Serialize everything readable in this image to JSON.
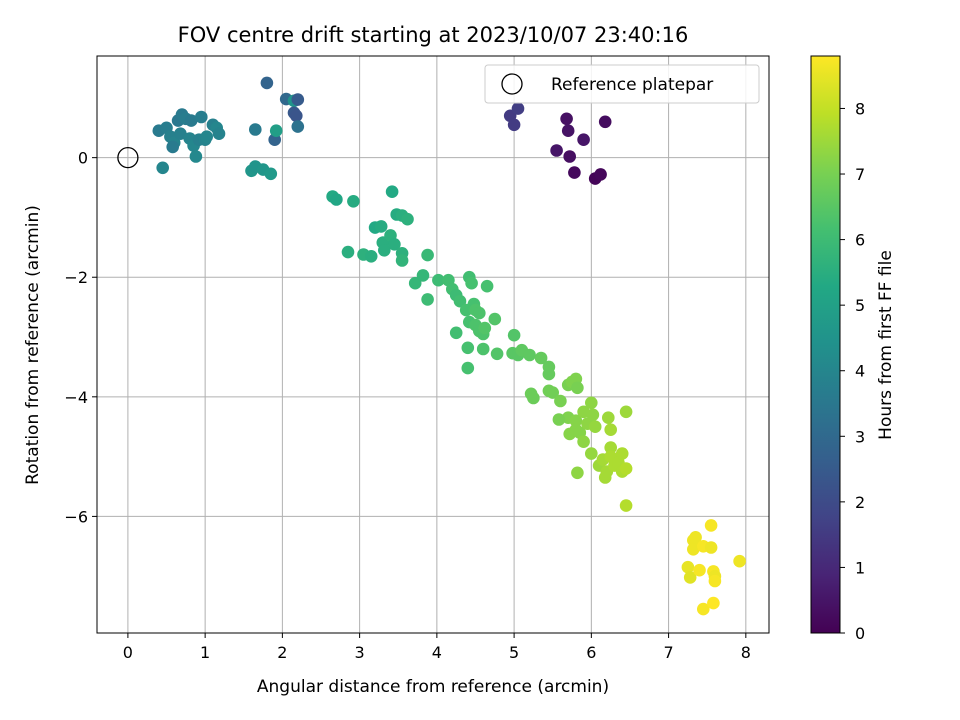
{
  "chart_data": {
    "type": "scatter",
    "title": "FOV centre drift starting at 2023/10/07 23:40:16",
    "xlabel": "Angular distance from reference (arcmin)",
    "ylabel": "Rotation from reference (arcmin)",
    "xlim": [
      -0.4,
      8.3
    ],
    "ylim": [
      -7.95,
      1.7
    ],
    "xticks": [
      0,
      1,
      2,
      3,
      4,
      5,
      6,
      7,
      8
    ],
    "yticks": [
      0,
      -2,
      -4,
      -6
    ],
    "ytick_labels": [
      "0",
      "−2",
      "−4",
      "−6"
    ],
    "grid": true,
    "legend": {
      "label": "Reference platepar",
      "placement": "top-right"
    },
    "colorbar": {
      "label": "Hours from first FF file",
      "colormap": "viridis",
      "range": [
        0,
        8.8
      ],
      "ticks": [
        0,
        1,
        2,
        3,
        4,
        5,
        6,
        7,
        8
      ]
    },
    "reference_point": {
      "x": 0,
      "y": 0
    },
    "points": [
      [
        4.95,
        0.7,
        1.5
      ],
      [
        5.0,
        0.55,
        1.55
      ],
      [
        5.05,
        0.82,
        1.6
      ],
      [
        5.55,
        0.12,
        0.5
      ],
      [
        5.68,
        0.65,
        0.4
      ],
      [
        5.7,
        0.45,
        0.45
      ],
      [
        5.72,
        0.02,
        0.35
      ],
      [
        5.78,
        -0.25,
        0.2
      ],
      [
        5.9,
        0.3,
        0.5
      ],
      [
        6.05,
        -0.35,
        0.1
      ],
      [
        6.12,
        -0.28,
        0.15
      ],
      [
        6.18,
        0.6,
        0.3
      ],
      [
        1.8,
        1.25,
        2.8
      ],
      [
        2.05,
        0.98,
        3.0
      ],
      [
        2.15,
        0.95,
        4.5
      ],
      [
        2.2,
        0.97,
        2.5
      ],
      [
        2.15,
        0.75,
        2.4
      ],
      [
        2.18,
        0.7,
        2.3
      ],
      [
        2.2,
        0.52,
        3.3
      ],
      [
        1.65,
        0.47,
        3.6
      ],
      [
        1.9,
        0.3,
        2.8
      ],
      [
        0.4,
        0.45,
        3.6
      ],
      [
        0.5,
        0.5,
        3.7
      ],
      [
        0.55,
        0.35,
        3.8
      ],
      [
        0.6,
        0.25,
        3.9
      ],
      [
        0.58,
        0.18,
        3.6
      ],
      [
        0.65,
        0.62,
        3.5
      ],
      [
        0.7,
        0.72,
        3.6
      ],
      [
        0.68,
        0.4,
        3.8
      ],
      [
        0.75,
        0.65,
        3.7
      ],
      [
        0.82,
        0.62,
        3.6
      ],
      [
        0.8,
        0.32,
        3.9
      ],
      [
        0.85,
        0.2,
        4.0
      ],
      [
        0.88,
        0.02,
        4.1
      ],
      [
        0.92,
        0.3,
        3.8
      ],
      [
        0.95,
        0.68,
        3.7
      ],
      [
        1.0,
        0.3,
        3.9
      ],
      [
        1.02,
        0.35,
        4.0
      ],
      [
        1.1,
        0.55,
        3.8
      ],
      [
        1.15,
        0.5,
        4.0
      ],
      [
        1.18,
        0.4,
        3.9
      ],
      [
        0.45,
        -0.17,
        4.0
      ],
      [
        1.6,
        -0.22,
        4.6
      ],
      [
        1.65,
        -0.15,
        4.5
      ],
      [
        1.75,
        -0.2,
        4.6
      ],
      [
        1.85,
        -0.27,
        4.7
      ],
      [
        1.92,
        0.45,
        4.9
      ],
      [
        2.65,
        -0.65,
        5.3
      ],
      [
        2.7,
        -0.7,
        5.2
      ],
      [
        2.92,
        -0.73,
        5.4
      ],
      [
        2.85,
        -1.58,
        5.5
      ],
      [
        3.05,
        -1.62,
        5.6
      ],
      [
        3.15,
        -1.65,
        5.5
      ],
      [
        3.2,
        -1.17,
        5.3
      ],
      [
        3.28,
        -1.15,
        5.4
      ],
      [
        3.3,
        -1.42,
        5.5
      ],
      [
        3.32,
        -1.55,
        5.5
      ],
      [
        3.4,
        -1.3,
        5.6
      ],
      [
        3.45,
        -1.45,
        5.5
      ],
      [
        3.42,
        -0.57,
        5.3
      ],
      [
        3.48,
        -0.95,
        5.4
      ],
      [
        3.55,
        -0.97,
        5.5
      ],
      [
        3.62,
        -1.03,
        5.6
      ],
      [
        3.55,
        -1.6,
        5.6
      ],
      [
        3.55,
        -1.72,
        5.7
      ],
      [
        3.72,
        -2.1,
        5.8
      ],
      [
        3.82,
        -1.97,
        5.8
      ],
      [
        3.88,
        -1.63,
        5.9
      ],
      [
        3.88,
        -2.37,
        6.0
      ],
      [
        4.02,
        -2.05,
        6.0
      ],
      [
        4.15,
        -2.05,
        6.1
      ],
      [
        4.2,
        -2.2,
        6.1
      ],
      [
        4.25,
        -2.3,
        6.0
      ],
      [
        4.3,
        -2.4,
        6.1
      ],
      [
        4.38,
        -2.55,
        6.2
      ],
      [
        4.42,
        -2.0,
        6.1
      ],
      [
        4.45,
        -2.1,
        6.2
      ],
      [
        4.48,
        -2.45,
        6.2
      ],
      [
        4.5,
        -2.55,
        6.3
      ],
      [
        4.55,
        -2.6,
        6.3
      ],
      [
        4.42,
        -2.75,
        6.2
      ],
      [
        4.5,
        -2.8,
        6.3
      ],
      [
        4.55,
        -2.9,
        6.3
      ],
      [
        4.6,
        -2.95,
        6.3
      ],
      [
        4.62,
        -2.85,
        6.4
      ],
      [
        4.65,
        -2.15,
        6.2
      ],
      [
        4.75,
        -2.7,
        6.4
      ],
      [
        4.25,
        -2.93,
        6.1
      ],
      [
        4.4,
        -3.18,
        6.2
      ],
      [
        4.6,
        -3.2,
        6.3
      ],
      [
        4.78,
        -3.28,
        6.4
      ],
      [
        4.4,
        -3.52,
        6.2
      ],
      [
        5.0,
        -2.97,
        6.4
      ],
      [
        4.98,
        -3.27,
        6.5
      ],
      [
        5.05,
        -3.3,
        6.5
      ],
      [
        5.1,
        -3.22,
        6.6
      ],
      [
        5.2,
        -3.3,
        6.6
      ],
      [
        5.35,
        -3.35,
        6.7
      ],
      [
        5.45,
        -3.5,
        6.7
      ],
      [
        5.45,
        -3.62,
        6.7
      ],
      [
        5.22,
        -3.95,
        6.8
      ],
      [
        5.25,
        -4.02,
        6.8
      ],
      [
        5.45,
        -3.9,
        6.9
      ],
      [
        5.5,
        -3.93,
        6.9
      ],
      [
        5.6,
        -4.07,
        7.0
      ],
      [
        5.7,
        -3.8,
        7.0
      ],
      [
        5.75,
        -3.75,
        7.1
      ],
      [
        5.8,
        -3.7,
        7.1
      ],
      [
        5.82,
        -3.85,
        7.0
      ],
      [
        5.7,
        -4.35,
        7.1
      ],
      [
        5.58,
        -4.38,
        7.0
      ],
      [
        5.8,
        -4.4,
        7.2
      ],
      [
        5.72,
        -4.62,
        7.2
      ],
      [
        5.8,
        -4.55,
        7.2
      ],
      [
        5.85,
        -4.6,
        7.2
      ],
      [
        5.9,
        -4.75,
        7.3
      ],
      [
        5.95,
        -4.45,
        7.3
      ],
      [
        5.9,
        -4.25,
        7.3
      ],
      [
        6.0,
        -4.1,
        7.3
      ],
      [
        6.02,
        -4.3,
        7.3
      ],
      [
        6.05,
        -4.5,
        7.4
      ],
      [
        6.0,
        -4.95,
        7.4
      ],
      [
        5.82,
        -5.27,
        7.3
      ],
      [
        6.1,
        -5.15,
        7.5
      ],
      [
        6.15,
        -5.05,
        7.6
      ],
      [
        6.18,
        -5.35,
        7.6
      ],
      [
        6.2,
        -5.25,
        7.6
      ],
      [
        6.22,
        -4.35,
        7.5
      ],
      [
        6.25,
        -4.55,
        7.6
      ],
      [
        6.25,
        -4.85,
        7.6
      ],
      [
        6.25,
        -5.0,
        7.7
      ],
      [
        6.3,
        -5.15,
        7.7
      ],
      [
        6.35,
        -5.1,
        7.7
      ],
      [
        6.4,
        -4.95,
        7.7
      ],
      [
        6.4,
        -5.25,
        7.7
      ],
      [
        6.45,
        -5.2,
        7.8
      ],
      [
        6.45,
        -4.25,
        7.5
      ],
      [
        6.45,
        -5.82,
        7.8
      ],
      [
        7.25,
        -6.85,
        8.5
      ],
      [
        7.28,
        -7.02,
        8.4
      ],
      [
        7.32,
        -6.4,
        8.6
      ],
      [
        7.35,
        -6.35,
        8.6
      ],
      [
        7.32,
        -6.55,
        8.6
      ],
      [
        7.4,
        -6.9,
        8.7
      ],
      [
        7.45,
        -6.5,
        8.7
      ],
      [
        7.45,
        -7.55,
        8.7
      ],
      [
        7.55,
        -6.52,
        8.6
      ],
      [
        7.55,
        -6.15,
        8.7
      ],
      [
        7.58,
        -6.92,
        8.7
      ],
      [
        7.6,
        -7.0,
        8.6
      ],
      [
        7.6,
        -7.08,
        8.7
      ],
      [
        7.58,
        -7.45,
        8.8
      ],
      [
        7.92,
        -6.75,
        8.6
      ]
    ]
  }
}
